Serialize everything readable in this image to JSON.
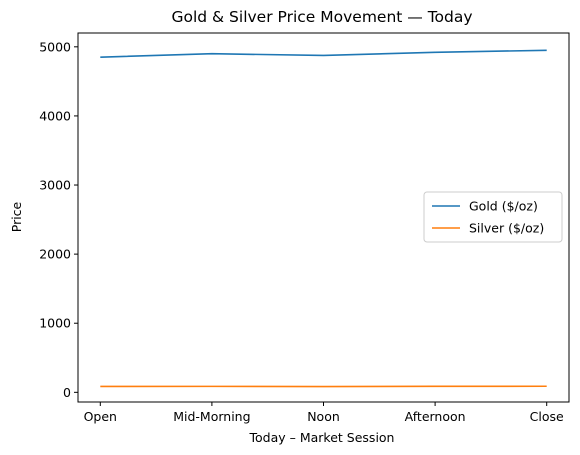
{
  "chart_data": {
    "type": "line",
    "title": "Gold & Silver Price Movement — Today",
    "xlabel": "Today – Market Session",
    "ylabel": "Price",
    "categories": [
      "Open",
      "Mid-Morning",
      "Noon",
      "Afternoon",
      "Close"
    ],
    "yticks": [
      0,
      1000,
      2000,
      3000,
      4000,
      5000
    ],
    "ylim": [
      -140,
      5200
    ],
    "grid": false,
    "legend_position": "center-right",
    "series": [
      {
        "name": "Gold ($/oz)",
        "color": "#1f77b4",
        "values": [
          4850,
          4900,
          4875,
          4920,
          4950
        ]
      },
      {
        "name": "Silver ($/oz)",
        "color": "#ff7f0e",
        "values": [
          85,
          86,
          84,
          87,
          88
        ]
      }
    ]
  }
}
